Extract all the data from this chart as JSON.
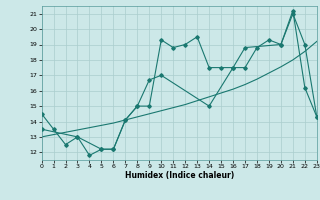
{
  "title": "",
  "xlabel": "Humidex (Indice chaleur)",
  "ylabel": "",
  "bg_color": "#cce8e8",
  "line_color": "#1a7870",
  "xlim": [
    0,
    23
  ],
  "ylim": [
    11.5,
    21.5
  ],
  "xticks": [
    0,
    1,
    2,
    3,
    4,
    5,
    6,
    7,
    8,
    9,
    10,
    11,
    12,
    13,
    14,
    15,
    16,
    17,
    18,
    19,
    20,
    21,
    22,
    23
  ],
  "yticks": [
    12,
    13,
    14,
    15,
    16,
    17,
    18,
    19,
    20,
    21
  ],
  "grid_color": "#aacece",
  "series1_x": [
    0,
    1,
    2,
    3,
    4,
    5,
    6,
    7,
    8,
    9,
    10,
    11,
    12,
    13,
    14,
    15,
    16,
    17,
    18,
    19,
    20,
    21,
    22,
    23
  ],
  "series1_y": [
    14.5,
    13.5,
    12.5,
    13.0,
    11.8,
    12.2,
    12.2,
    14.1,
    15.0,
    15.0,
    19.3,
    18.8,
    19.0,
    19.5,
    17.5,
    17.5,
    17.5,
    17.5,
    18.8,
    19.3,
    19.0,
    21.2,
    16.2,
    14.3
  ],
  "series2_x": [
    0,
    1,
    2,
    3,
    4,
    5,
    6,
    7,
    8,
    9,
    10,
    11,
    12,
    13,
    14,
    15,
    16,
    17,
    18,
    19,
    20,
    21,
    22,
    23
  ],
  "series2_y": [
    13.0,
    13.15,
    13.3,
    13.45,
    13.6,
    13.75,
    13.9,
    14.1,
    14.3,
    14.5,
    14.7,
    14.9,
    15.1,
    15.35,
    15.6,
    15.85,
    16.1,
    16.4,
    16.75,
    17.15,
    17.55,
    18.0,
    18.55,
    19.2
  ],
  "series3_x": [
    0,
    3,
    5,
    6,
    7,
    8,
    9,
    10,
    14,
    16,
    17,
    20,
    21,
    22,
    23
  ],
  "series3_y": [
    13.5,
    13.0,
    12.2,
    12.2,
    14.1,
    15.0,
    16.7,
    17.0,
    15.0,
    17.5,
    18.8,
    19.0,
    21.0,
    19.0,
    14.3
  ]
}
